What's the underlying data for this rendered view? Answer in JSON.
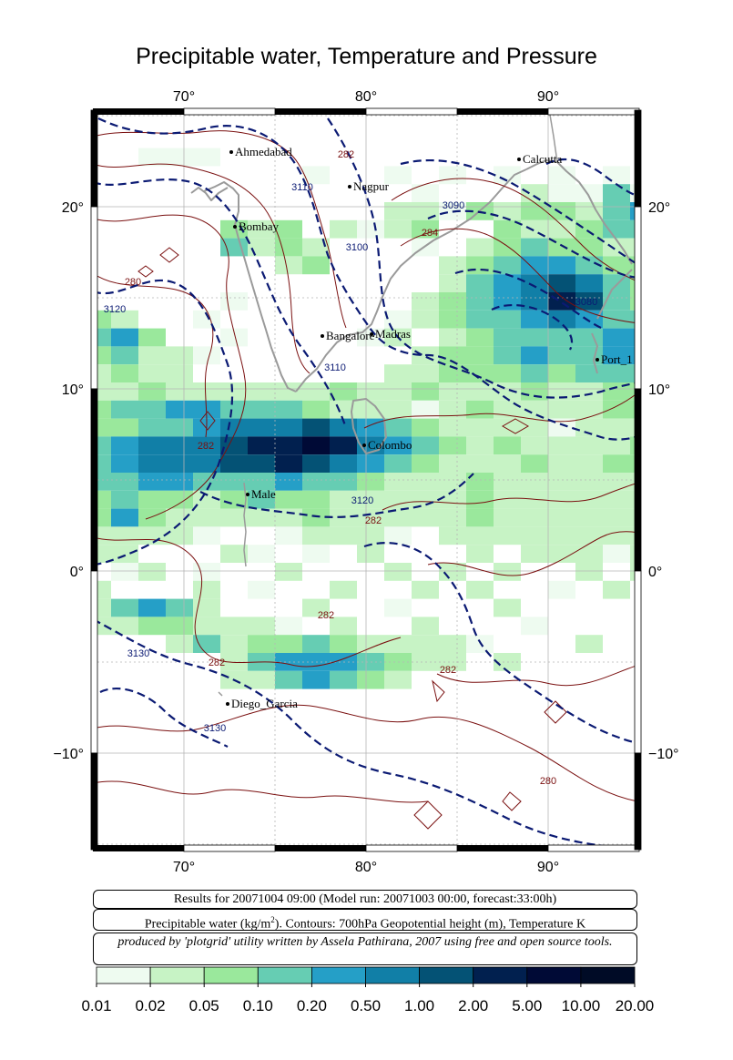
{
  "title": "Precipitable water, Temperature and Pressure",
  "map": {
    "lon_ticks": [
      "70°",
      "80°",
      "90°"
    ],
    "lat_ticks": [
      "20°",
      "10°",
      "0°",
      "−10°"
    ],
    "cities": [
      {
        "name": "Ahmedabad",
        "lon": 72.6,
        "lat": 23.0
      },
      {
        "name": "Nagpur",
        "lon": 79.1,
        "lat": 21.1
      },
      {
        "name": "Calcutta",
        "lon": 88.4,
        "lat": 22.6
      },
      {
        "name": "Bombay",
        "lon": 72.8,
        "lat": 18.9
      },
      {
        "name": "Bangalore",
        "lon": 77.6,
        "lat": 12.9
      },
      {
        "name": "Madras",
        "lon": 80.3,
        "lat": 13.0
      },
      {
        "name": "Port_1",
        "lon": 92.7,
        "lat": 11.6
      },
      {
        "name": "Colombo",
        "lon": 79.9,
        "lat": 6.9
      },
      {
        "name": "Male",
        "lon": 73.5,
        "lat": 4.2
      },
      {
        "name": "Diego_Garcia",
        "lon": 72.4,
        "lat": -7.3
      }
    ],
    "contour_labels": [
      {
        "text": "3110",
        "lon": 76.5,
        "lat": 20.9,
        "kind": "height"
      },
      {
        "text": "282",
        "lon": 78.9,
        "lat": 22.7,
        "kind": "temperature"
      },
      {
        "text": "3100",
        "lon": 79.5,
        "lat": 17.6,
        "kind": "height"
      },
      {
        "text": "3090",
        "lon": 84.8,
        "lat": 19.9,
        "kind": "height"
      },
      {
        "text": "284",
        "lon": 83.5,
        "lat": 18.4,
        "kind": "temperature"
      },
      {
        "text": "3080",
        "lon": 92.1,
        "lat": 14.6,
        "kind": "height"
      },
      {
        "text": "280",
        "lon": 67.2,
        "lat": 15.7,
        "kind": "temperature"
      },
      {
        "text": "3120",
        "lon": 66.2,
        "lat": 14.2,
        "kind": "height"
      },
      {
        "text": "3110",
        "lon": 78.3,
        "lat": 11.0,
        "kind": "height"
      },
      {
        "text": "282",
        "lon": 71.2,
        "lat": 6.7,
        "kind": "temperature"
      },
      {
        "text": "3120",
        "lon": 79.8,
        "lat": 3.7,
        "kind": "height"
      },
      {
        "text": "282",
        "lon": 80.4,
        "lat": 2.6,
        "kind": "temperature"
      },
      {
        "text": "282",
        "lon": 77.8,
        "lat": -2.6,
        "kind": "temperature"
      },
      {
        "text": "3130",
        "lon": 67.5,
        "lat": -4.7,
        "kind": "height"
      },
      {
        "text": "282",
        "lon": 71.8,
        "lat": -5.2,
        "kind": "temperature"
      },
      {
        "text": "282",
        "lon": 84.5,
        "lat": -5.6,
        "kind": "temperature"
      },
      {
        "text": "3130",
        "lon": 71.7,
        "lat": -8.8,
        "kind": "height"
      },
      {
        "text": "280",
        "lon": 90.0,
        "lat": -11.7,
        "kind": "temperature"
      }
    ],
    "colors": {
      "height_contour": "#0b1a73",
      "temperature_contour": "#7a1010",
      "coastline": "#999999",
      "grid": "#bbbbbb"
    }
  },
  "info": {
    "results": "Results for 20071004 09:00 (Model run: 20071003 00:00, forecast:33:00h)",
    "contours_pre": "Precipitable water (kg/m",
    "contours_sup": "2",
    "contours_post": ").  Contours: 700hPa Geopotential height (m), Temperature K",
    "credit": "produced by 'plotgrid' utility written by Assela Pathirana, 2007 using free and open source tools."
  },
  "colorbar": {
    "tick_labels": [
      "0.01",
      "0.02",
      "0.05",
      "0.10",
      "0.20",
      "0.50",
      "1.00",
      "2.00",
      "5.00",
      "10.00",
      "20.00"
    ],
    "colors": [
      "#eefbf0",
      "#c7f3c5",
      "#9ae89c",
      "#66cdb3",
      "#259fc7",
      "#117fa7",
      "#045275",
      "#01204f",
      "#000a36",
      "#000b26"
    ]
  }
}
